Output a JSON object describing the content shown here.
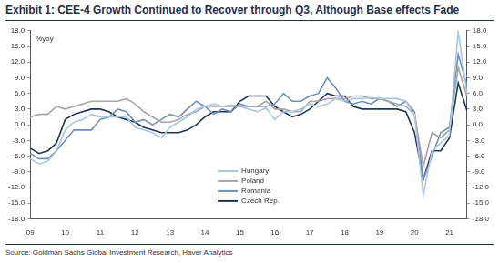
{
  "chart_data": {
    "type": "line",
    "title": "Exhibit 1: CEE-4 Growth Continued to Recover through Q3, Although Base effects Fade",
    "y_label": "%yoy",
    "source": "Source: Goldman Sachs Global Investment Research, Haver Analytics",
    "categories": [
      "09",
      null,
      null,
      null,
      "10",
      null,
      null,
      null,
      "11",
      null,
      null,
      null,
      "12",
      null,
      null,
      null,
      "13",
      null,
      null,
      null,
      "14",
      null,
      null,
      null,
      "15",
      null,
      null,
      null,
      "16",
      null,
      null,
      null,
      "17",
      null,
      null,
      null,
      "18",
      null,
      null,
      null,
      "19",
      null,
      null,
      null,
      "20",
      null,
      null,
      null,
      "21",
      null,
      null
    ],
    "series": [
      {
        "name": "Hungary",
        "color": "#a9c6e3",
        "values": [
          -6.5,
          -7.5,
          -7,
          -5,
          -1,
          0.5,
          1,
          2,
          1.5,
          1.5,
          1.5,
          1.5,
          -0.5,
          -1,
          -1.5,
          -2.5,
          -0.5,
          0.5,
          1.5,
          3,
          3.5,
          4,
          3.5,
          3.8,
          3.5,
          3,
          2.5,
          3.2,
          1,
          2.5,
          2.5,
          3,
          4,
          3.5,
          4,
          5,
          4.5,
          5,
          5,
          5.2,
          5,
          5,
          5,
          4.5,
          2,
          -13.5,
          -5,
          -3.5,
          -2,
          17.8,
          6
        ]
      },
      {
        "name": "Poland",
        "color": "#a6a6a6",
        "values": [
          1.5,
          2,
          2,
          3.5,
          3,
          3.5,
          4,
          4.5,
          4.5,
          4.5,
          4.5,
          5,
          4,
          2.5,
          1.5,
          0.5,
          0.5,
          1,
          2,
          2.5,
          3.5,
          3.5,
          3.5,
          3.5,
          3.5,
          3.5,
          3.5,
          4.5,
          3,
          3,
          2.5,
          2.5,
          4.5,
          4.5,
          5,
          5,
          5,
          5.5,
          5.5,
          5,
          5,
          4.5,
          4,
          3.5,
          2,
          -8,
          -1.5,
          -2.5,
          -1,
          11,
          5.5
        ]
      },
      {
        "name": "Romania",
        "color": "#6f8fb8",
        "values": [
          -5.5,
          -6.5,
          -6.5,
          -5,
          -3,
          -1,
          -1,
          -1,
          1,
          1.5,
          3,
          2.5,
          0.5,
          1,
          0,
          1,
          2,
          1.5,
          3,
          4.5,
          3.5,
          2,
          3,
          2.5,
          4,
          3.5,
          3.5,
          3.5,
          4,
          6,
          4.5,
          4.5,
          5.5,
          6,
          9,
          7,
          4.5,
          4,
          4.5,
          4,
          5,
          4.5,
          3.5,
          4.5,
          2.5,
          -10.5,
          -6,
          -1.5,
          -0.5,
          13.5,
          7.5
        ]
      },
      {
        "name": "Czech Rep.",
        "color": "#1f3554",
        "values": [
          -4.5,
          -5.5,
          -5,
          -3.5,
          1,
          2,
          2.5,
          3,
          3,
          2.5,
          1.5,
          1,
          0.5,
          -0.5,
          -1,
          -1.5,
          -1.5,
          -1.5,
          -1,
          0,
          1.5,
          2.5,
          2.5,
          2.5,
          4.5,
          5.5,
          5.5,
          5.5,
          3.5,
          2.5,
          1.5,
          2,
          3,
          4.5,
          6,
          5.5,
          5.5,
          3.5,
          3,
          3,
          3,
          3,
          3,
          2.5,
          -1.5,
          -10.5,
          -5,
          -5,
          -2.5,
          8,
          2.7
        ]
      }
    ],
    "ylim": [
      -18,
      18
    ],
    "yticks": [
      {
        "value": -18,
        "label": "-18.0"
      },
      {
        "value": -15,
        "label": "-15.0"
      },
      {
        "value": -12,
        "label": "-12.0"
      },
      {
        "value": -9,
        "label": "-9.0"
      },
      {
        "value": -6,
        "label": "-6.0"
      },
      {
        "value": -3,
        "label": "-3.0"
      },
      {
        "value": 0,
        "label": "0.0"
      },
      {
        "value": 3,
        "label": "3.0"
      },
      {
        "value": 6,
        "label": "6.0"
      },
      {
        "value": 9,
        "label": "9.0"
      },
      {
        "value": 12,
        "label": "12.0"
      },
      {
        "value": 15,
        "label": "15.0"
      },
      {
        "value": 18,
        "label": "18.0"
      }
    ],
    "y2lim": [
      -18,
      18
    ],
    "y2ticks": [
      {
        "value": -18,
        "label": "-18.0"
      },
      {
        "value": -15,
        "label": "-15.0"
      },
      {
        "value": -12,
        "label": "-12.0"
      },
      {
        "value": -9,
        "label": "-9.0"
      },
      {
        "value": -6,
        "label": "-6.0"
      },
      {
        "value": -3,
        "label": "-3.0"
      },
      {
        "value": 0,
        "label": "0.0"
      },
      {
        "value": 3,
        "label": "3.0"
      },
      {
        "value": 6,
        "label": "6.0"
      },
      {
        "value": 9,
        "label": "9.0"
      },
      {
        "value": 12,
        "label": "12.0"
      },
      {
        "value": 15,
        "label": "15.0"
      },
      {
        "value": 18,
        "label": "18.0"
      }
    ],
    "grid": false,
    "legend": "lower center"
  }
}
